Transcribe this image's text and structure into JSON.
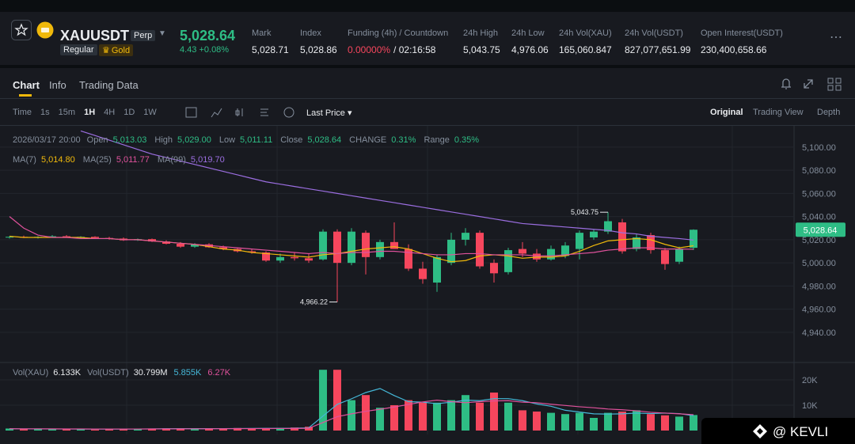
{
  "header": {
    "symbol": "XAUUSDT",
    "badge": "Perp",
    "tags": [
      "Regular",
      "Gold"
    ],
    "price": "5,028.64",
    "change": "4.43 +0.08%",
    "stats": [
      {
        "label": "Mark",
        "value": "5,028.71"
      },
      {
        "label": "Index",
        "value": "5,028.86"
      },
      {
        "label": "Funding (4h) / Countdown",
        "value": "0.00000%",
        "extra": "/ 02:16:58"
      },
      {
        "label": "24h High",
        "value": "5,043.75"
      },
      {
        "label": "24h Low",
        "value": "4,976.06"
      },
      {
        "label": "24h Vol(XAU)",
        "value": "165,060.847"
      },
      {
        "label": "24h Vol(USDT)",
        "value": "827,077,651.99"
      },
      {
        "label": "Open Interest(USDT)",
        "value": "230,400,658.66"
      }
    ]
  },
  "tabs": [
    "Chart",
    "Info",
    "Trading Data"
  ],
  "toolbar": {
    "intervals": [
      "Time",
      "1s",
      "15m",
      "1H",
      "4H",
      "1D",
      "1W"
    ],
    "price_type": "Last Price",
    "views": [
      "Original",
      "Trading View",
      "Depth"
    ]
  },
  "chart_data": [
    {
      "type": "candlestick",
      "date": "2026/03/17 20:00",
      "legend": [
        {
          "label": "Open",
          "value": "5,013.03"
        },
        {
          "label": "High",
          "value": "5,029.00"
        },
        {
          "label": "Low",
          "value": "5,011.11"
        },
        {
          "label": "Close",
          "value": "5,028.64"
        },
        {
          "label": "CHANGE",
          "value": "0.31%"
        },
        {
          "label": "Range",
          "value": "0.35%"
        }
      ],
      "up_color": "#2ebd85",
      "down_color": "#f6465d",
      "open": [
        5022,
        5022.5,
        5022,
        5022.5,
        5023,
        5022,
        5022.5,
        5021.5,
        5021,
        5019.5,
        5020.5,
        5018.5,
        5016.5,
        5014,
        5016,
        5013.5,
        5012,
        5010,
        5009,
        5002,
        5005,
        5004,
        5003,
        5027,
        5000,
        5026,
        5005,
        5018,
        5012,
        4995,
        4983,
        5000,
        5020,
        5026,
        5000,
        4992,
        5012,
        5008,
        5003,
        5006,
        5012,
        5022,
        5027,
        5035,
        5012,
        5024,
        5011,
        5001,
        5013.03
      ],
      "high": [
        5023,
        5023.5,
        5023,
        5024,
        5024,
        5023,
        5023,
        5022.5,
        5022,
        5021,
        5021,
        5019.5,
        5018,
        5017,
        5017,
        5015,
        5013,
        5012,
        5010,
        5008,
        5009,
        5008,
        5029,
        5029,
        5030,
        5028,
        5020,
        5035,
        5016,
        5001,
        5007,
        5026,
        5030,
        5028,
        5003,
        5013,
        5018,
        5012,
        5015,
        5018,
        5028,
        5029,
        5043.75,
        5038,
        5025,
        5026,
        5013,
        5014,
        5029.0
      ],
      "low": [
        5021,
        5021.5,
        5021,
        5022,
        5022,
        5021,
        5021,
        5020,
        5019,
        5019,
        5018,
        5016,
        5013,
        5013,
        5013,
        5011,
        5009,
        5008,
        5001,
        5000,
        5002,
        5000,
        5002,
        4966.22,
        4998,
        4990,
        5003,
        5013,
        4993,
        4982,
        4975,
        4998,
        5015,
        4995,
        4983,
        4990,
        5005,
        5001,
        5002,
        5004,
        5003,
        5020,
        5025,
        5008,
        5010,
        5008,
        4994,
        4999,
        5011.11
      ],
      "close": [
        5022.5,
        5022,
        5022.5,
        5023,
        5022,
        5022.5,
        5021.5,
        5021,
        5019.5,
        5020.5,
        5018.5,
        5016.5,
        5014,
        5016,
        5013.5,
        5012,
        5010,
        5009,
        5002,
        5005,
        5004,
        5002,
        5027,
        5000,
        5027,
        5005,
        5018,
        5012,
        4995,
        4986,
        5005,
        5020,
        5026,
        4997,
        4991,
        5011,
        5008,
        5003,
        5012,
        5015,
        5026,
        5027,
        5036,
        5010,
        5022,
        5011,
        4999,
        5012,
        5028.64
      ],
      "series": [
        {
          "name": "MA(7)",
          "color": "#f0b90b",
          "last_label": "5,014.80",
          "values": [
            5023,
            5022,
            5022,
            5022,
            5022,
            5022,
            5021,
            5021,
            5020,
            5020,
            5019,
            5018,
            5017,
            5016,
            5014,
            5012,
            5011,
            5009,
            5008,
            5007,
            5006,
            5005,
            5007,
            5008,
            5010,
            5012,
            5013,
            5014,
            5012,
            5008,
            5004,
            5001,
            5002,
            5006,
            5007,
            5006,
            5004,
            5005,
            5005,
            5006,
            5010,
            5015,
            5019,
            5020,
            5021,
            5020,
            5016,
            5013,
            5014.8
          ]
        },
        {
          "name": "MA(25)",
          "color": "#e0529c",
          "last_label": "5,011.77",
          "values": [
            5040,
            5030,
            5024,
            5022,
            5022,
            5021,
            5021,
            5021,
            5020,
            5020,
            5019,
            5018,
            5017,
            5016,
            5015,
            5014,
            5013,
            5012,
            5011,
            5010,
            5009,
            5008,
            5009,
            5008,
            5009,
            5009,
            5010,
            5010,
            5009,
            5008,
            5007,
            5007,
            5008,
            5008,
            5007,
            5007,
            5007,
            5006,
            5006,
            5007,
            5008,
            5009,
            5011,
            5012,
            5013,
            5013,
            5012,
            5012,
            5011.77
          ]
        },
        {
          "name": "MA(99)",
          "color": "#9b6ee0",
          "last_label": "5,019.70",
          "values": [
            null,
            null,
            null,
            null,
            null,
            5114,
            5110,
            5106,
            5102,
            5098,
            5094,
            5091,
            5088,
            5085,
            5082,
            5079,
            5076,
            5073,
            5070,
            5068,
            5066,
            5064,
            5062,
            5060,
            5058,
            5056,
            5054,
            5052,
            5050,
            5048,
            5046,
            5044,
            5042,
            5040,
            5038,
            5036,
            5034,
            5033,
            5032,
            5031,
            5030,
            5029,
            5028,
            5026,
            5025,
            5023,
            5022,
            5021,
            5019.7
          ]
        }
      ],
      "ylim": [
        4915,
        5117
      ],
      "yticks": [
        {
          "value": 5100,
          "label": "5,100.00"
        },
        {
          "value": 5080,
          "label": "5,080.00"
        },
        {
          "value": 5060,
          "label": "5,060.00"
        },
        {
          "value": 5040,
          "label": "5,040.00"
        },
        {
          "value": 5020,
          "label": "5,020.00"
        },
        {
          "value": 5000,
          "label": "5,000.00"
        },
        {
          "value": 4980,
          "label": "4,980.00"
        },
        {
          "value": 4960,
          "label": "4,960.00"
        },
        {
          "value": 4940,
          "label": "4,940.00"
        }
      ],
      "annotations": [
        {
          "value": 5043.75,
          "label": "5,043.75"
        },
        {
          "value": 4966.22,
          "label": "4,966.22"
        }
      ],
      "last_price_label": "5,028.64"
    },
    {
      "type": "bar",
      "legend": [
        {
          "label": "Vol(XAU)",
          "value": "6.133K"
        },
        {
          "label": "Vol(USDT)",
          "value": "30.799M"
        }
      ],
      "values": [
        800,
        600,
        500,
        600,
        700,
        500,
        400,
        600,
        700,
        500,
        800,
        900,
        700,
        600,
        900,
        700,
        1000,
        800,
        900,
        1000,
        1200,
        1500,
        24000,
        24000,
        12000,
        14000,
        9000,
        10000,
        12000,
        11000,
        11000,
        12000,
        14000,
        11000,
        15000,
        11000,
        8000,
        7500,
        7000,
        6500,
        7000,
        5000,
        7000,
        7500,
        8000,
        6500,
        6000,
        5500,
        6133
      ],
      "series": [
        {
          "color": "#45b8d8",
          "last_label": "5.855K",
          "values": [
            700,
            650,
            650,
            600,
            600,
            580,
            560,
            560,
            580,
            600,
            640,
            700,
            740,
            740,
            760,
            760,
            800,
            840,
            860,
            880,
            920,
            1080,
            5720,
            10340,
            12540,
            15000,
            16600,
            13800,
            11400,
            11200,
            10600,
            11200,
            12000,
            11800,
            12600,
            12600,
            11800,
            10500,
            9600,
            8000,
            7300,
            6600,
            6500,
            6600,
            6900,
            6700,
            6900,
            6700,
            5855
          ]
        },
        {
          "color": "#e0529c",
          "last_label": "6.27K",
          "values": [
            700,
            690,
            680,
            660,
            640,
            620,
            600,
            600,
            600,
            600,
            620,
            640,
            660,
            680,
            700,
            720,
            740,
            760,
            780,
            800,
            820,
            900,
            3200,
            5500,
            6600,
            7600,
            8400,
            9300,
            10300,
            11300,
            12000,
            11400,
            11000,
            11400,
            11700,
            11800,
            11200,
            11000,
            10400,
            9900,
            9400,
            9000,
            8500,
            8200,
            7800,
            7200,
            6900,
            6600,
            6270
          ]
        }
      ],
      "ylim": [
        0,
        25000
      ],
      "yticks": [
        {
          "value": 20000,
          "label": "20K"
        },
        {
          "value": 10000,
          "label": "10K"
        }
      ]
    }
  ],
  "watermark": "@ KEVLI"
}
